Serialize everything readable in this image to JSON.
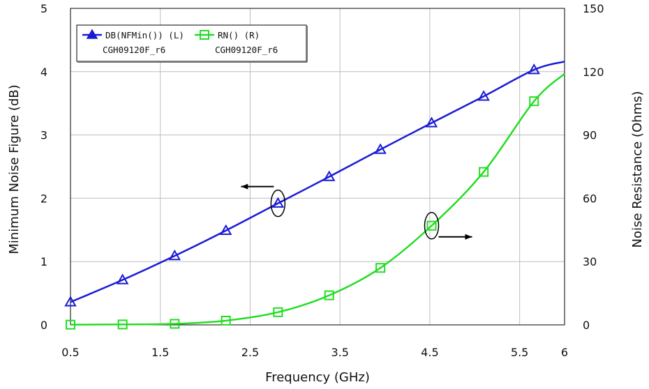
{
  "chart_data": {
    "type": "line",
    "title": "",
    "xlabel": "Frequency (GHz)",
    "ylabel_left": "Minimum Noise Figure (dB)",
    "ylabel_right": "Noise Resistance (Ohms)",
    "xlim": [
      0.5,
      6
    ],
    "ylim_left": [
      0,
      5
    ],
    "ylim_right": [
      0,
      150
    ],
    "x_ticks": [
      "0.5",
      "1.5",
      "2.5",
      "3.5",
      "4.5",
      "5.5",
      "6"
    ],
    "x_tick_values": [
      0.5,
      1.5,
      2.5,
      3.5,
      4.5,
      5.5,
      6
    ],
    "y_left_ticks": [
      "0",
      "1",
      "2",
      "3",
      "4",
      "5"
    ],
    "y_right_ticks": [
      "0",
      "30",
      "60",
      "90",
      "120",
      "150"
    ],
    "grid": true,
    "legend_placement": "top-left",
    "series": [
      {
        "name": "DB(NFMin()) (L)",
        "subtitle": "CGH09120F_r6",
        "axis": "left",
        "marker": "triangle",
        "color": "#1a1ad6",
        "x": [
          0.5,
          1.08,
          1.66,
          2.23,
          2.81,
          3.38,
          3.95,
          4.52,
          5.1,
          5.66,
          6.0
        ],
        "y": [
          0.36,
          0.71,
          1.09,
          1.49,
          1.92,
          2.34,
          2.77,
          3.19,
          3.61,
          4.03,
          4.16
        ],
        "marker_count": 10
      },
      {
        "name": "RN() (R)",
        "subtitle": "CGH09120F_r6",
        "axis": "right",
        "marker": "square",
        "color": "#22dd22",
        "x": [
          0.5,
          1.08,
          1.66,
          2.23,
          2.81,
          3.38,
          3.95,
          4.52,
          5.1,
          5.66,
          6.0
        ],
        "y": [
          0.1,
          0.2,
          0.5,
          2.0,
          6.0,
          14.0,
          27.0,
          47.0,
          72.5,
          106.0,
          119.0
        ],
        "marker_count": 10
      }
    ],
    "annotations": [
      {
        "target_series": "DB(NFMin()) (L)",
        "x": 2.81,
        "direction": "left",
        "meaning": "left axis"
      },
      {
        "target_series": "RN() (R)",
        "x": 4.52,
        "direction": "right",
        "meaning": "right axis"
      }
    ]
  }
}
